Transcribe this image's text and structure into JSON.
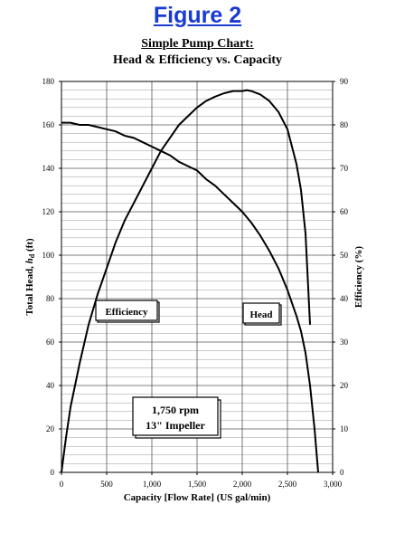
{
  "figure_label": "Figure 2",
  "chart_data": {
    "type": "line",
    "title": "Simple Pump Chart:",
    "subtitle": "Head & Efficiency vs. Capacity",
    "xlabel": "Capacity [Flow Rate] (US gal/min)",
    "ylabel_left": {
      "prefix": "Total Head, ",
      "symbol": "h",
      "sub": "d",
      "suffix": " (ft)"
    },
    "ylabel_right": "Efficiency (%)",
    "xlim": [
      0,
      3000
    ],
    "ylim_left": [
      0,
      180
    ],
    "ylim_right": [
      0,
      90
    ],
    "x_ticks": [
      "0",
      "500",
      "1,000",
      "1,500",
      "2,000",
      "2,500",
      "3,000"
    ],
    "x_tick_values": [
      0,
      500,
      1000,
      1500,
      2000,
      2500,
      3000
    ],
    "y_left_ticks": [
      "0",
      "20",
      "40",
      "60",
      "80",
      "100",
      "120",
      "140",
      "160",
      "180"
    ],
    "y_left_tick_values": [
      0,
      20,
      40,
      60,
      80,
      100,
      120,
      140,
      160,
      180
    ],
    "y_right_ticks": [
      "0",
      "10",
      "20",
      "30",
      "40",
      "50",
      "60",
      "70",
      "80",
      "90"
    ],
    "y_right_tick_values": [
      0,
      10,
      20,
      30,
      40,
      50,
      60,
      70,
      80,
      90
    ],
    "grid": true,
    "minor_grid_step_left": 4,
    "series": [
      {
        "name": "Head",
        "axis": "left",
        "x": [
          0,
          100,
          200,
          300,
          400,
          500,
          600,
          700,
          800,
          900,
          1000,
          1100,
          1200,
          1300,
          1400,
          1500,
          1600,
          1700,
          1800,
          1900,
          2000,
          2100,
          2200,
          2300,
          2400,
          2500,
          2600,
          2650,
          2700,
          2750,
          2800,
          2840
        ],
        "values": [
          161,
          161,
          160,
          160,
          159,
          158,
          157,
          155,
          154,
          152,
          150,
          148,
          146,
          143,
          141,
          139,
          135,
          132,
          128,
          124,
          120,
          115,
          109,
          102,
          94,
          84,
          72,
          65,
          55,
          40,
          20,
          0
        ]
      },
      {
        "name": "Efficiency",
        "axis": "right",
        "x": [
          0,
          50,
          100,
          200,
          300,
          400,
          500,
          600,
          700,
          800,
          900,
          1000,
          1100,
          1200,
          1300,
          1400,
          1500,
          1600,
          1700,
          1800,
          1900,
          2000,
          2050,
          2100,
          2200,
          2300,
          2400,
          2500,
          2600,
          2650,
          2700,
          2750
        ],
        "values": [
          0,
          8,
          15,
          25,
          34,
          41,
          47,
          53,
          58,
          62,
          66,
          70,
          74,
          77,
          80,
          82,
          84,
          85.5,
          86.5,
          87.3,
          87.8,
          87.8,
          88,
          87.8,
          87,
          85.5,
          83,
          79,
          71,
          65,
          55,
          34
        ]
      }
    ],
    "annotations": {
      "efficiency_label": "Efficiency",
      "head_label": "Head",
      "speed": "1,750 rpm",
      "impeller": "13\" Impeller"
    }
  }
}
